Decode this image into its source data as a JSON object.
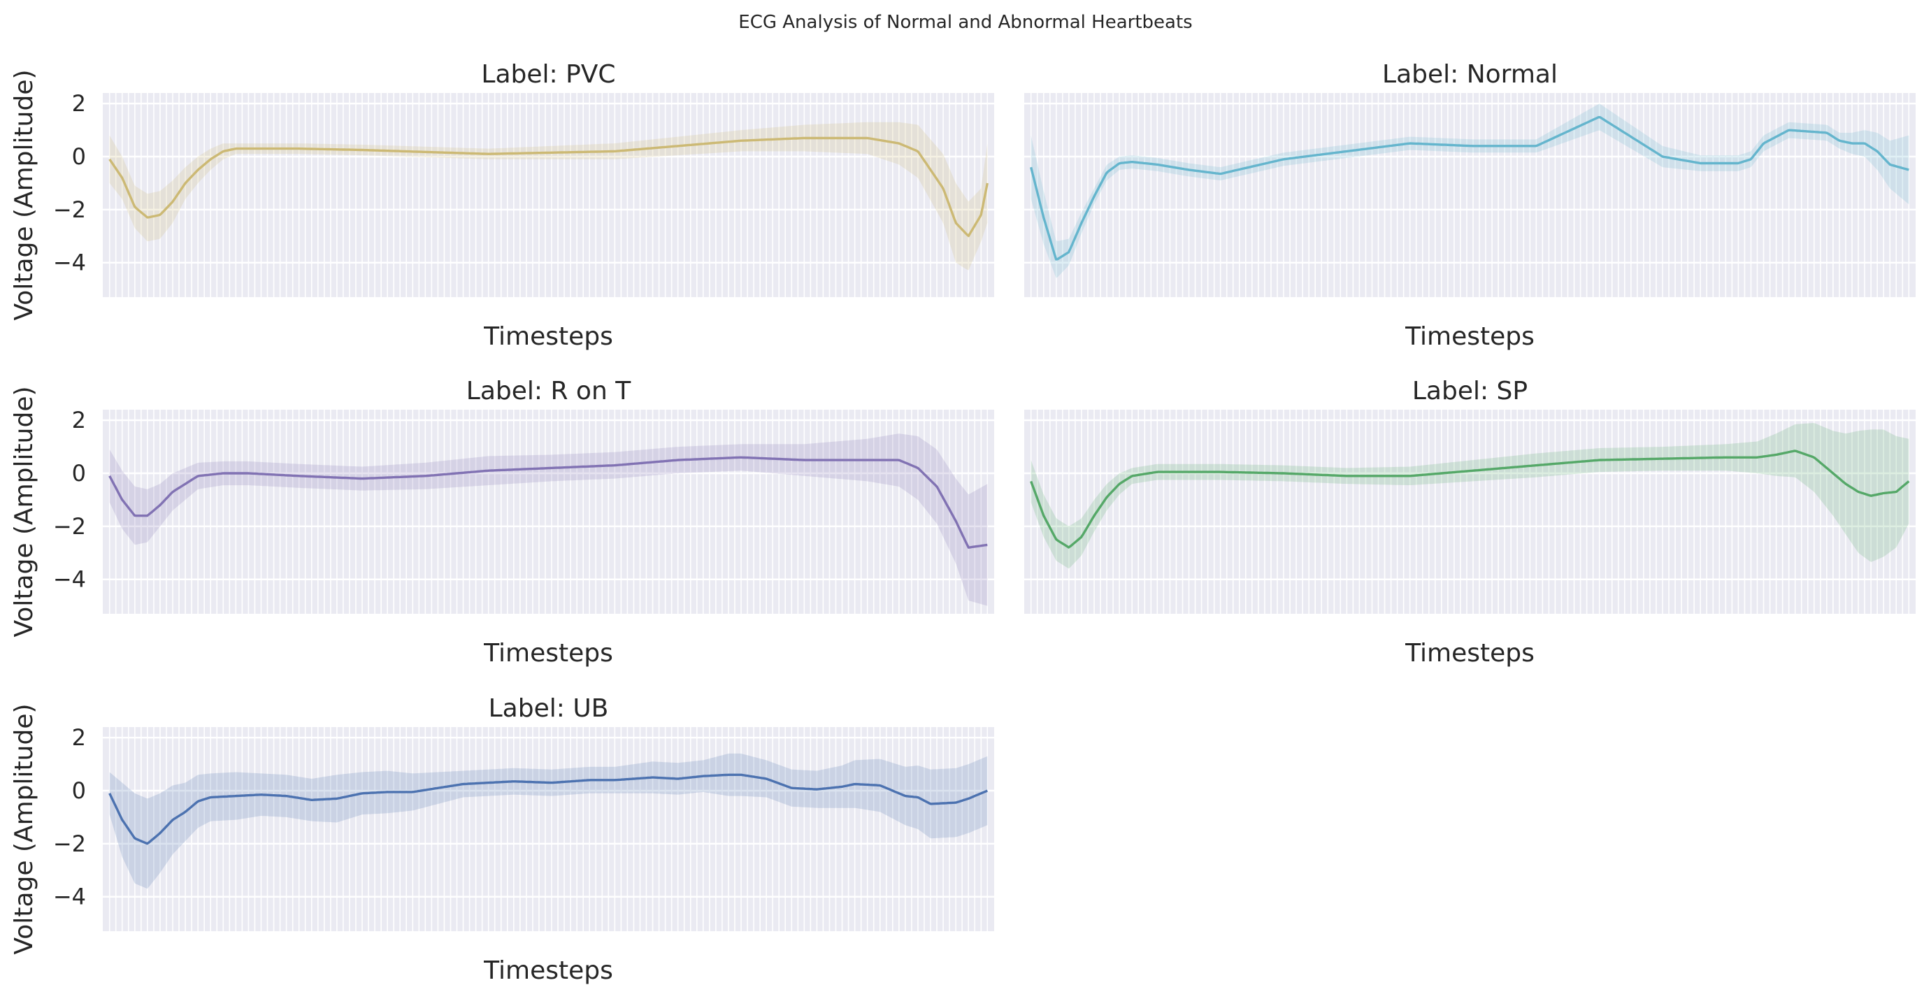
{
  "figure": {
    "title": "ECG Analysis of Normal and Abnormal Heartbeats"
  },
  "chart_data": [
    {
      "type": "line",
      "title": "Label: PVC",
      "xlabel": "Timesteps",
      "ylabel": "Voltage (Amplitude)",
      "ylim": [
        -5.3,
        2.4
      ],
      "yticks": [
        2,
        0,
        -2,
        -4
      ],
      "xtick_labels_shown": false,
      "n_timesteps": 140,
      "grid": true,
      "color": "#ccb974",
      "x": [
        0,
        2,
        4,
        6,
        8,
        10,
        12,
        14,
        16,
        18,
        20,
        24,
        30,
        40,
        60,
        80,
        100,
        110,
        120,
        125,
        128,
        132,
        134,
        136,
        138,
        139
      ],
      "mean": [
        -0.1,
        -0.8,
        -1.9,
        -2.3,
        -2.2,
        -1.7,
        -1.0,
        -0.5,
        -0.1,
        0.2,
        0.3,
        0.3,
        0.3,
        0.25,
        0.1,
        0.2,
        0.6,
        0.7,
        0.7,
        0.5,
        0.2,
        -1.2,
        -2.5,
        -3.0,
        -2.2,
        -1.0
      ],
      "band_halfwidth": [
        0.9,
        0.8,
        0.8,
        0.9,
        0.9,
        0.8,
        0.6,
        0.5,
        0.4,
        0.3,
        0.2,
        0.2,
        0.2,
        0.2,
        0.2,
        0.3,
        0.4,
        0.5,
        0.6,
        0.8,
        1.0,
        1.3,
        1.5,
        1.3,
        1.0,
        1.5
      ]
    },
    {
      "type": "line",
      "title": "Label: Normal",
      "xlabel": "Timesteps",
      "ylabel": "",
      "ylim": [
        -5.3,
        2.4
      ],
      "yticks": [],
      "xtick_labels_shown": false,
      "n_timesteps": 140,
      "grid": true,
      "color": "#64b5cd",
      "x": [
        0,
        2,
        4,
        6,
        8,
        10,
        12,
        14,
        16,
        18,
        20,
        25,
        30,
        40,
        50,
        60,
        70,
        80,
        90,
        100,
        106,
        112,
        114,
        116,
        120,
        126,
        128,
        130,
        132,
        134,
        136,
        139
      ],
      "mean": [
        -0.4,
        -2.3,
        -3.9,
        -3.6,
        -2.5,
        -1.5,
        -0.6,
        -0.25,
        -0.2,
        -0.25,
        -0.3,
        -0.5,
        -0.65,
        -0.1,
        0.2,
        0.5,
        0.4,
        0.4,
        1.5,
        0.0,
        -0.25,
        -0.25,
        -0.1,
        0.5,
        1.0,
        0.9,
        0.6,
        0.5,
        0.5,
        0.2,
        -0.3,
        -0.5
      ],
      "band_halfwidth": [
        1.2,
        1.0,
        0.7,
        0.5,
        0.4,
        0.3,
        0.3,
        0.25,
        0.25,
        0.25,
        0.25,
        0.25,
        0.25,
        0.25,
        0.25,
        0.25,
        0.25,
        0.25,
        0.5,
        0.4,
        0.3,
        0.3,
        0.3,
        0.3,
        0.3,
        0.3,
        0.3,
        0.4,
        0.5,
        0.7,
        0.9,
        1.3
      ]
    },
    {
      "type": "line",
      "title": "Label: R on T",
      "xlabel": "Timesteps",
      "ylabel": "Voltage (Amplitude)",
      "ylim": [
        -5.3,
        2.4
      ],
      "yticks": [
        2,
        0,
        -2,
        -4
      ],
      "xtick_labels_shown": false,
      "n_timesteps": 140,
      "grid": true,
      "color": "#8172b3",
      "x": [
        0,
        2,
        4,
        6,
        8,
        10,
        14,
        18,
        22,
        30,
        40,
        50,
        60,
        70,
        80,
        90,
        100,
        110,
        120,
        125,
        128,
        131,
        134,
        136,
        139
      ],
      "mean": [
        -0.1,
        -1.0,
        -1.6,
        -1.6,
        -1.2,
        -0.7,
        -0.1,
        0.0,
        0.0,
        -0.1,
        -0.2,
        -0.1,
        0.1,
        0.2,
        0.3,
        0.5,
        0.6,
        0.5,
        0.5,
        0.5,
        0.2,
        -0.5,
        -1.8,
        -2.8,
        -2.7
      ],
      "band_halfwidth": [
        1.0,
        1.1,
        1.1,
        1.0,
        0.8,
        0.7,
        0.5,
        0.45,
        0.45,
        0.45,
        0.45,
        0.5,
        0.55,
        0.5,
        0.5,
        0.5,
        0.5,
        0.6,
        0.8,
        1.0,
        1.2,
        1.4,
        1.6,
        2.0,
        2.3
      ]
    },
    {
      "type": "line",
      "title": "Label: SP",
      "xlabel": "Timesteps",
      "ylabel": "",
      "ylim": [
        -5.3,
        2.4
      ],
      "yticks": [],
      "xtick_labels_shown": false,
      "n_timesteps": 140,
      "grid": true,
      "color": "#55a868",
      "x": [
        0,
        2,
        4,
        6,
        8,
        10,
        12,
        14,
        16,
        20,
        30,
        40,
        50,
        60,
        70,
        80,
        90,
        100,
        110,
        115,
        118,
        121,
        124,
        127,
        129,
        131,
        133,
        135,
        137,
        139
      ],
      "mean": [
        -0.3,
        -1.6,
        -2.5,
        -2.8,
        -2.4,
        -1.6,
        -0.9,
        -0.4,
        -0.1,
        0.05,
        0.05,
        0.0,
        -0.1,
        -0.1,
        0.1,
        0.3,
        0.5,
        0.55,
        0.6,
        0.6,
        0.7,
        0.85,
        0.6,
        0.0,
        -0.4,
        -0.7,
        -0.85,
        -0.75,
        -0.7,
        -0.3
      ],
      "band_halfwidth": [
        0.8,
        0.8,
        0.8,
        0.8,
        0.7,
        0.6,
        0.5,
        0.4,
        0.3,
        0.3,
        0.3,
        0.3,
        0.3,
        0.35,
        0.4,
        0.45,
        0.45,
        0.45,
        0.5,
        0.6,
        0.8,
        1.0,
        1.3,
        1.6,
        1.9,
        2.3,
        2.5,
        2.4,
        2.1,
        1.6
      ]
    },
    {
      "type": "line",
      "title": "Label: UB",
      "xlabel": "Timesteps",
      "ylabel": "Voltage (Amplitude)",
      "ylim": [
        -5.3,
        2.4
      ],
      "yticks": [
        2,
        0,
        -2,
        -4
      ],
      "xtick_labels_shown": false,
      "n_timesteps": 140,
      "grid": true,
      "color": "#4c72b0",
      "x": [
        0,
        2,
        4,
        6,
        8,
        10,
        12,
        14,
        16,
        20,
        24,
        28,
        32,
        36,
        40,
        44,
        48,
        52,
        56,
        60,
        64,
        70,
        76,
        80,
        86,
        90,
        94,
        98,
        100,
        104,
        108,
        112,
        116,
        118,
        122,
        126,
        128,
        130,
        134,
        136,
        139
      ],
      "mean": [
        -0.1,
        -1.1,
        -1.8,
        -2.0,
        -1.6,
        -1.1,
        -0.8,
        -0.4,
        -0.25,
        -0.2,
        -0.15,
        -0.2,
        -0.35,
        -0.3,
        -0.1,
        -0.05,
        -0.05,
        0.1,
        0.25,
        0.3,
        0.35,
        0.3,
        0.4,
        0.4,
        0.5,
        0.45,
        0.55,
        0.6,
        0.6,
        0.45,
        0.1,
        0.05,
        0.15,
        0.25,
        0.2,
        -0.2,
        -0.25,
        -0.5,
        -0.45,
        -0.3,
        0.0
      ],
      "band_halfwidth": [
        0.8,
        1.4,
        1.7,
        1.7,
        1.5,
        1.3,
        1.1,
        1.0,
        0.9,
        0.9,
        0.8,
        0.8,
        0.8,
        0.9,
        0.8,
        0.8,
        0.7,
        0.6,
        0.5,
        0.5,
        0.5,
        0.5,
        0.5,
        0.5,
        0.6,
        0.6,
        0.6,
        0.8,
        0.8,
        0.7,
        0.7,
        0.7,
        0.8,
        0.9,
        1.0,
        1.1,
        1.2,
        1.3,
        1.3,
        1.3,
        1.3
      ]
    }
  ]
}
